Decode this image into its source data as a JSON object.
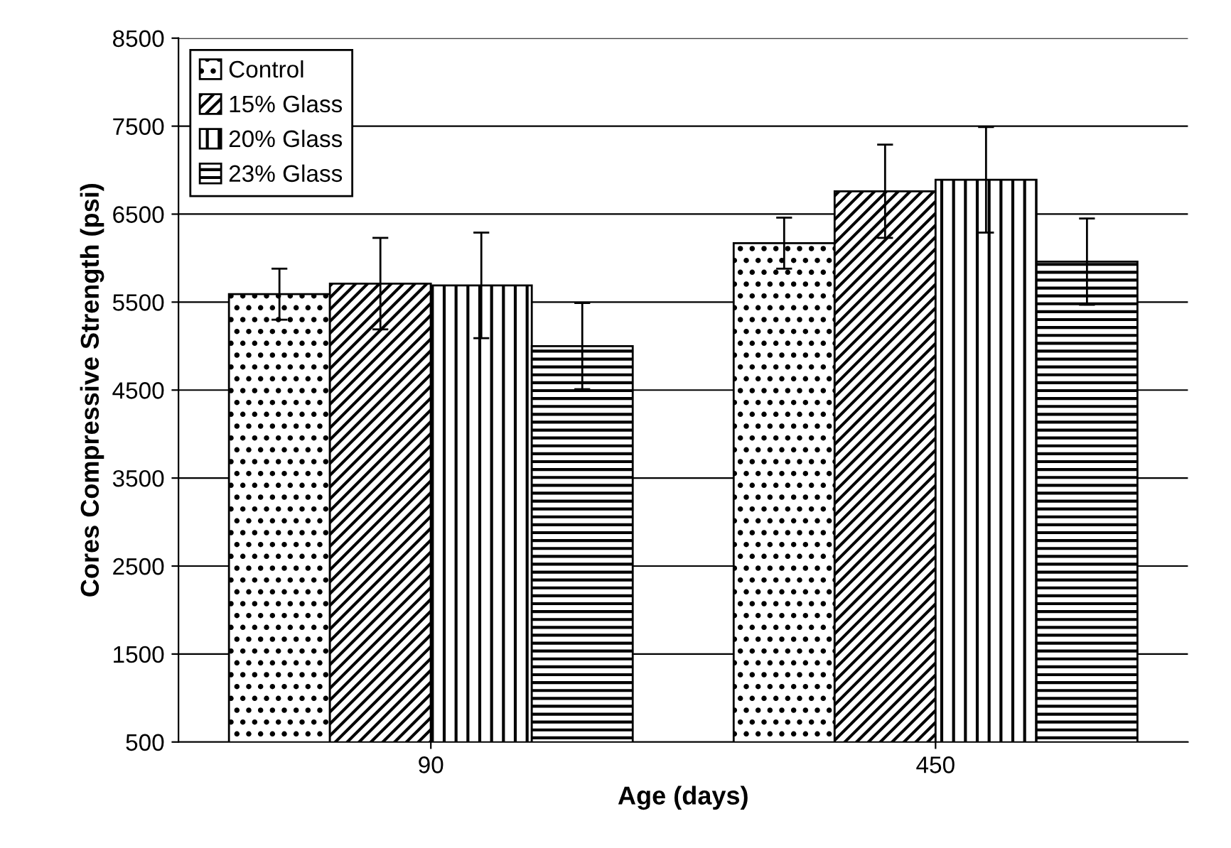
{
  "chart_data": {
    "type": "bar",
    "xlabel": "Age (days)",
    "ylabel": "Cores Compressive Strength (psi)",
    "categories": [
      "90",
      "450"
    ],
    "series": [
      {
        "name": "Control",
        "color": "#000000",
        "values": [
          5590,
          6170
        ],
        "errors": [
          290,
          290
        ]
      },
      {
        "name": "15% Glass",
        "color": "#000000",
        "values": [
          5710,
          6760
        ],
        "errors": [
          520,
          530
        ]
      },
      {
        "name": "20% Glass",
        "color": "#000000",
        "values": [
          5690,
          6890
        ],
        "errors": [
          600,
          600
        ]
      },
      {
        "name": "23% Glass",
        "color": "#000000",
        "values": [
          5000,
          5960
        ],
        "errors": [
          490,
          490
        ]
      }
    ],
    "ylim": [
      500,
      8500
    ],
    "yticks": [
      500,
      1500,
      2500,
      3500,
      4500,
      5500,
      6500,
      7500,
      8500
    ],
    "grid": "y",
    "legend": "top left"
  }
}
